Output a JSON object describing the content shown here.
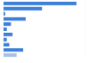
{
  "chart_data": {
    "type": "bar",
    "orientation": "horizontal",
    "categories": [
      null,
      null,
      null,
      null,
      null,
      null,
      null,
      null,
      null,
      null,
      null
    ],
    "values": [
      89,
      47,
      2,
      27,
      9,
      4,
      11,
      4,
      7,
      24,
      16
    ],
    "colors": [
      "#3d7fd9",
      "#3d7fd9",
      "#3d7fd9",
      "#3d7fd9",
      "#3d7fd9",
      "#3d7fd9",
      "#3d7fd9",
      "#3d7fd9",
      "#3d7fd9",
      "#3d7fd9",
      "#a8c1e8"
    ],
    "xlim": [
      0,
      100
    ],
    "grid": false,
    "tick_labels": false
  }
}
